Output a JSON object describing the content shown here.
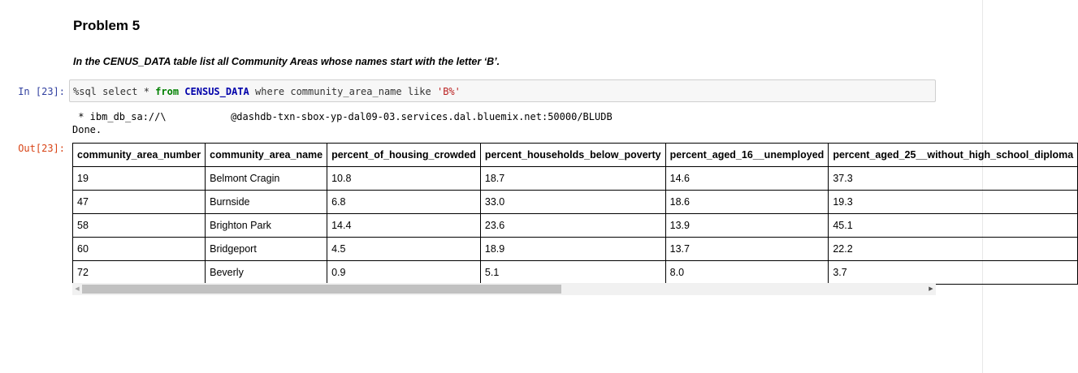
{
  "heading": "Problem 5",
  "instruction": "In the CENUS_DATA table list all Community Areas whose names start with the letter ‘B’.",
  "cell": {
    "in_prompt": "In [23]:",
    "out_prompt": "Out[23]:",
    "code": {
      "prefix": "%sql select * ",
      "kw_from": "from",
      "space1": " ",
      "table": "CENSUS_DATA",
      "mid": " where community_area_name like ",
      "literal": "'B%'"
    },
    "connection_line": " * ibm_db_sa://\\           @dashdb-txn-sbox-yp-dal09-03.services.dal.bluemix.net:50000/BLUDB",
    "status_line": "Done."
  },
  "table": {
    "columns": [
      "community_area_number",
      "community_area_name",
      "percent_of_housing_crowded",
      "percent_households_below_poverty",
      "percent_aged_16__unemployed",
      "percent_aged_25__without_high_school_diploma"
    ],
    "rows": [
      [
        "19",
        "Belmont Cragin",
        "10.8",
        "18.7",
        "14.6",
        "37.3"
      ],
      [
        "47",
        "Burnside",
        "6.8",
        "33.0",
        "18.6",
        "19.3"
      ],
      [
        "58",
        "Brighton Park",
        "14.4",
        "23.6",
        "13.9",
        "45.1"
      ],
      [
        "60",
        "Bridgeport",
        "4.5",
        "18.9",
        "13.7",
        "22.2"
      ],
      [
        "72",
        "Beverly",
        "0.9",
        "5.1",
        "8.0",
        "3.7"
      ]
    ]
  },
  "scrollbar": {
    "left_arrow_icon": "triangle-left-icon",
    "right_arrow_icon": "triangle-right-icon",
    "left_arrow_glyph": "◀",
    "right_arrow_glyph": "▶"
  }
}
